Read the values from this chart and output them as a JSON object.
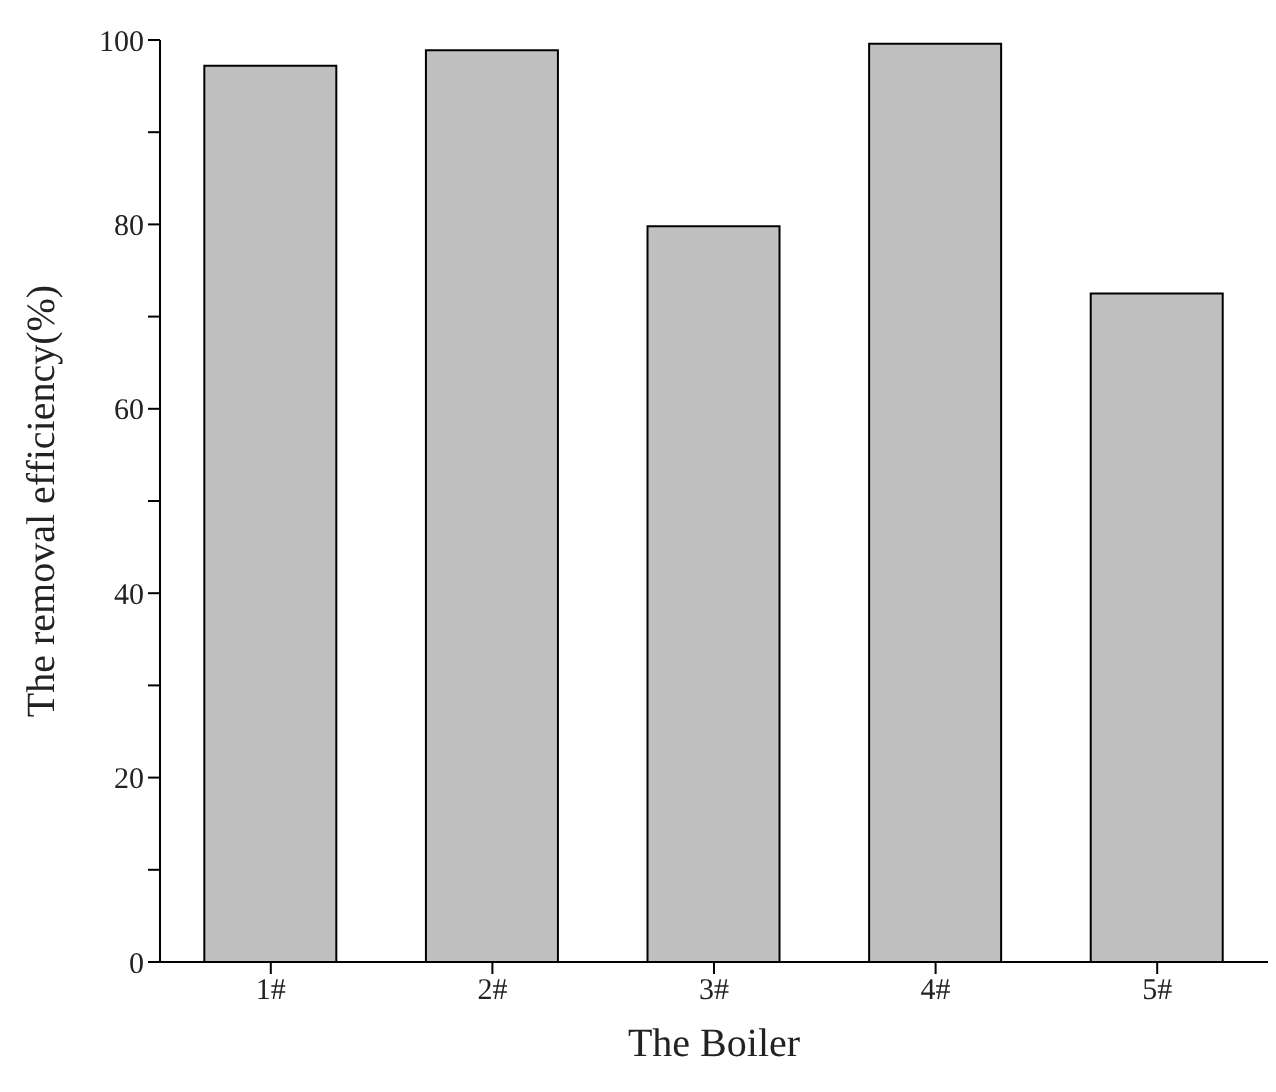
{
  "chart_data": {
    "type": "bar",
    "xlabel": "The Boiler",
    "ylabel": "The removal efficiency(%)",
    "categories": [
      "1#",
      "2#",
      "3#",
      "4#",
      "5#"
    ],
    "values": [
      97.2,
      98.9,
      79.8,
      99.6,
      72.5
    ],
    "color": "#c0c0c0",
    "ylim": [
      0,
      100
    ],
    "yticks": [
      0,
      {
        "value": 10,
        "label": null
      },
      20,
      {
        "value": 30,
        "label": null
      },
      40,
      {
        "value": 50,
        "label": null
      },
      60,
      {
        "value": 70,
        "label": null
      },
      80,
      {
        "value": 90,
        "label": null
      },
      100
    ],
    "grid": false,
    "legend": false
  }
}
